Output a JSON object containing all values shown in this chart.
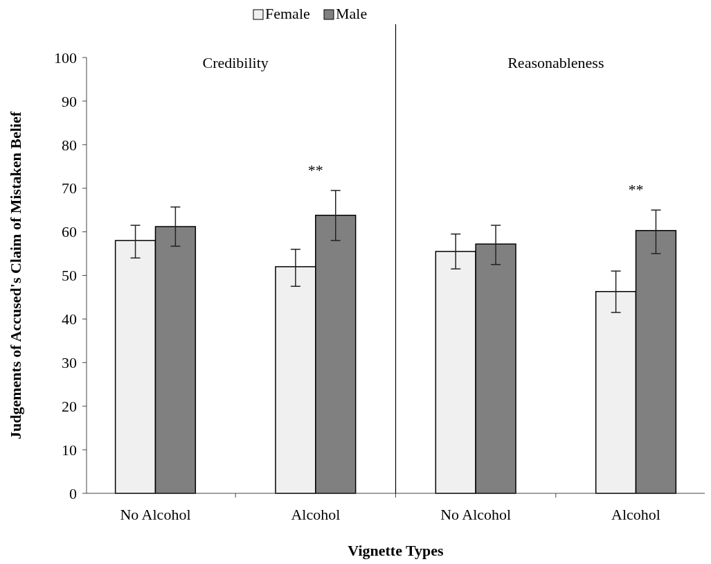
{
  "chart_data": {
    "type": "bar",
    "xlabel": "Vignette Types",
    "ylabel": "Judgements of Accused's Claim of Mistaken Belief",
    "categories": [
      "No Alcohol",
      "Alcohol",
      "No Alcohol",
      "Alcohol"
    ],
    "series": [
      {
        "name": "Female",
        "color": "#f0f0f0",
        "values": [
          58,
          52,
          55.5,
          46.3
        ],
        "errors": [
          [
            54,
            61.5
          ],
          [
            47.5,
            56
          ],
          [
            51.5,
            59.5
          ],
          [
            41.5,
            51
          ]
        ]
      },
      {
        "name": "Male",
        "color": "#808080",
        "values": [
          61.2,
          63.8,
          57.2,
          60.3
        ],
        "errors": [
          [
            56.7,
            65.7
          ],
          [
            58,
            69.5
          ],
          [
            52.5,
            61.5
          ],
          [
            55,
            65
          ]
        ]
      }
    ],
    "ylim": [
      0,
      100
    ],
    "yticks": [
      0,
      10,
      20,
      30,
      40,
      50,
      60,
      70,
      80,
      90,
      100
    ],
    "grid": false,
    "legend": "top",
    "annotations": [
      "Credibility",
      "Reasonableness",
      "**",
      "**"
    ]
  }
}
